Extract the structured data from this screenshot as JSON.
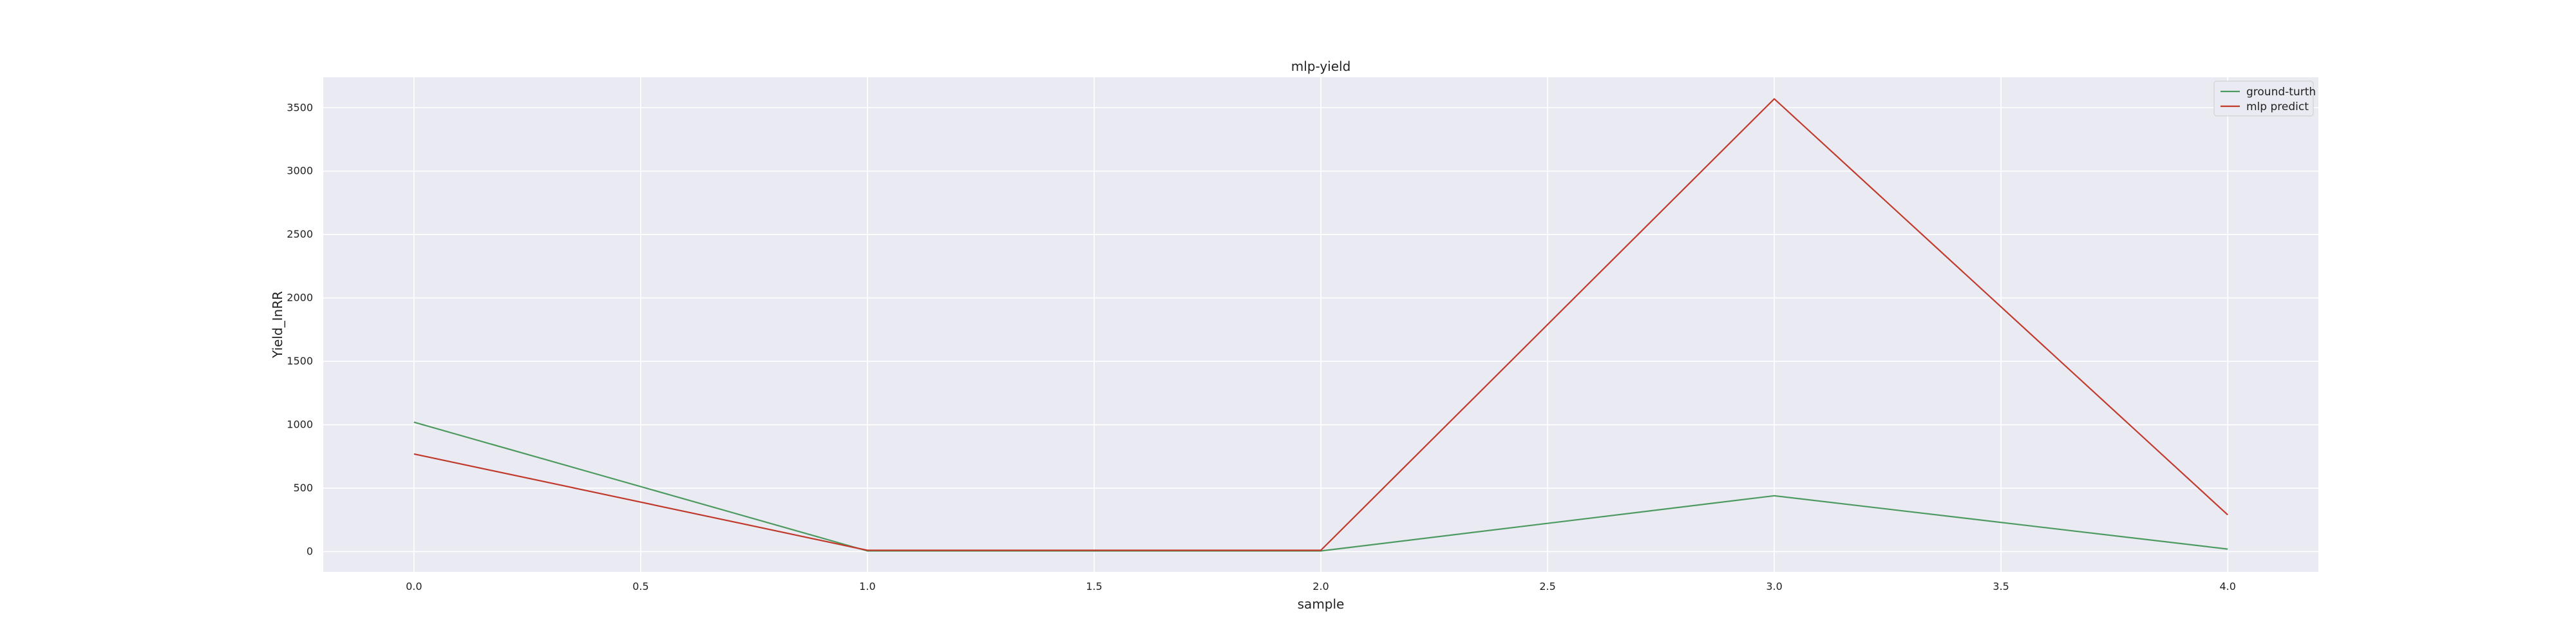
{
  "chart_data": {
    "type": "line",
    "title": "mlp-yield",
    "xlabel": "sample",
    "ylabel": "Yield_InRR",
    "x": [
      0,
      1,
      2,
      3,
      4
    ],
    "xticks": [
      "0.0",
      "0.5",
      "1.0",
      "1.5",
      "2.0",
      "2.5",
      "3.0",
      "3.5",
      "4.0"
    ],
    "xtick_values": [
      0,
      0.5,
      1,
      1.5,
      2,
      2.5,
      3,
      3.5,
      4
    ],
    "yticks": [
      "0",
      "500",
      "1000",
      "1500",
      "2000",
      "2500",
      "3000",
      "3500"
    ],
    "ytick_values": [
      0,
      500,
      1000,
      1500,
      2000,
      2500,
      3000,
      3500
    ],
    "xlim": [
      -0.2,
      4.2
    ],
    "ylim": [
      -160,
      3740
    ],
    "grid": true,
    "legend_position": "top-right",
    "series": [
      {
        "name": "ground-turth",
        "color": "#4c9a5f",
        "values": [
          1020,
          5,
          5,
          440,
          20
        ]
      },
      {
        "name": "mlp predict",
        "color": "#c0392b",
        "values": [
          770,
          10,
          10,
          3570,
          290
        ]
      }
    ],
    "colors": {
      "plot_background": "#eaeaf2",
      "grid": "#ffffff"
    }
  }
}
